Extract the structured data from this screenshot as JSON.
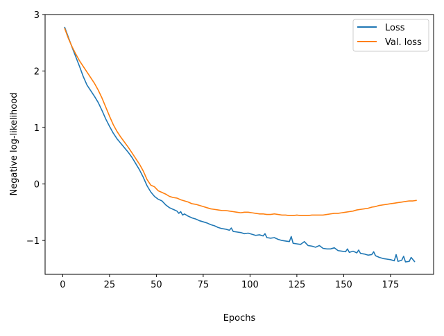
{
  "chart_data": {
    "type": "line",
    "xlabel": "Epochs",
    "ylabel": "Negative log-likelihood",
    "xlim": [
      -9.4,
      198
    ],
    "ylim": [
      -1.6,
      3.0
    ],
    "xticks": [
      0,
      25,
      50,
      75,
      100,
      125,
      150,
      175
    ],
    "xtick_labels": [
      "0",
      "25",
      "50",
      "75",
      "100",
      "125",
      "150",
      "175"
    ],
    "yticks": [
      -1,
      0,
      1,
      2,
      3
    ],
    "ytick_labels": [
      "−1",
      "0",
      "1",
      "2",
      "3"
    ],
    "grid": false,
    "legend_position": "top-right",
    "series": [
      {
        "name": "Loss",
        "color": "#1f77b4",
        "points": [
          [
            1,
            2.78
          ],
          [
            3,
            2.6
          ],
          [
            5,
            2.42
          ],
          [
            7,
            2.25
          ],
          [
            9,
            2.08
          ],
          [
            11,
            1.9
          ],
          [
            13,
            1.75
          ],
          [
            15,
            1.65
          ],
          [
            17,
            1.55
          ],
          [
            19,
            1.44
          ],
          [
            21,
            1.3
          ],
          [
            23,
            1.15
          ],
          [
            25,
            1.02
          ],
          [
            27,
            0.9
          ],
          [
            29,
            0.8
          ],
          [
            31,
            0.72
          ],
          [
            33,
            0.64
          ],
          [
            35,
            0.56
          ],
          [
            37,
            0.47
          ],
          [
            39,
            0.36
          ],
          [
            41,
            0.25
          ],
          [
            43,
            0.12
          ],
          [
            45,
            -0.03
          ],
          [
            47,
            -0.14
          ],
          [
            49,
            -0.22
          ],
          [
            51,
            -0.27
          ],
          [
            53,
            -0.3
          ],
          [
            55,
            -0.37
          ],
          [
            57,
            -0.42
          ],
          [
            59,
            -0.45
          ],
          [
            61,
            -0.48
          ],
          [
            62,
            -0.52
          ],
          [
            63,
            -0.49
          ],
          [
            64,
            -0.55
          ],
          [
            65,
            -0.53
          ],
          [
            67,
            -0.57
          ],
          [
            69,
            -0.6
          ],
          [
            71,
            -0.62
          ],
          [
            73,
            -0.65
          ],
          [
            75,
            -0.67
          ],
          [
            77,
            -0.69
          ],
          [
            79,
            -0.72
          ],
          [
            81,
            -0.74
          ],
          [
            83,
            -0.77
          ],
          [
            85,
            -0.79
          ],
          [
            87,
            -0.8
          ],
          [
            89,
            -0.82
          ],
          [
            90,
            -0.78
          ],
          [
            91,
            -0.84
          ],
          [
            93,
            -0.85
          ],
          [
            95,
            -0.86
          ],
          [
            97,
            -0.88
          ],
          [
            99,
            -0.87
          ],
          [
            101,
            -0.89
          ],
          [
            103,
            -0.91
          ],
          [
            105,
            -0.9
          ],
          [
            107,
            -0.92
          ],
          [
            108,
            -0.88
          ],
          [
            109,
            -0.95
          ],
          [
            111,
            -0.96
          ],
          [
            113,
            -0.95
          ],
          [
            115,
            -0.98
          ],
          [
            117,
            -1.0
          ],
          [
            119,
            -1.01
          ],
          [
            121,
            -1.02
          ],
          [
            122,
            -0.93
          ],
          [
            123,
            -1.05
          ],
          [
            125,
            -1.06
          ],
          [
            127,
            -1.07
          ],
          [
            129,
            -1.02
          ],
          [
            131,
            -1.09
          ],
          [
            133,
            -1.1
          ],
          [
            135,
            -1.12
          ],
          [
            137,
            -1.09
          ],
          [
            139,
            -1.14
          ],
          [
            141,
            -1.15
          ],
          [
            143,
            -1.15
          ],
          [
            145,
            -1.13
          ],
          [
            147,
            -1.18
          ],
          [
            149,
            -1.19
          ],
          [
            151,
            -1.2
          ],
          [
            152,
            -1.15
          ],
          [
            153,
            -1.21
          ],
          [
            155,
            -1.19
          ],
          [
            157,
            -1.22
          ],
          [
            158,
            -1.17
          ],
          [
            159,
            -1.23
          ],
          [
            161,
            -1.24
          ],
          [
            163,
            -1.26
          ],
          [
            165,
            -1.25
          ],
          [
            166,
            -1.2
          ],
          [
            167,
            -1.27
          ],
          [
            169,
            -1.3
          ],
          [
            171,
            -1.32
          ],
          [
            173,
            -1.33
          ],
          [
            175,
            -1.34
          ],
          [
            177,
            -1.36
          ],
          [
            178,
            -1.25
          ],
          [
            179,
            -1.37
          ],
          [
            181,
            -1.35
          ],
          [
            182,
            -1.28
          ],
          [
            183,
            -1.38
          ],
          [
            185,
            -1.37
          ],
          [
            186,
            -1.3
          ],
          [
            188,
            -1.38
          ]
        ]
      },
      {
        "name": "Val. loss",
        "color": "#ff7f0e",
        "points": [
          [
            1,
            2.76
          ],
          [
            3,
            2.58
          ],
          [
            5,
            2.43
          ],
          [
            7,
            2.3
          ],
          [
            9,
            2.18
          ],
          [
            11,
            2.08
          ],
          [
            13,
            1.98
          ],
          [
            15,
            1.88
          ],
          [
            17,
            1.78
          ],
          [
            19,
            1.66
          ],
          [
            21,
            1.52
          ],
          [
            23,
            1.36
          ],
          [
            25,
            1.2
          ],
          [
            27,
            1.05
          ],
          [
            29,
            0.93
          ],
          [
            31,
            0.83
          ],
          [
            33,
            0.74
          ],
          [
            35,
            0.65
          ],
          [
            37,
            0.55
          ],
          [
            39,
            0.45
          ],
          [
            41,
            0.35
          ],
          [
            43,
            0.23
          ],
          [
            45,
            0.08
          ],
          [
            47,
            -0.02
          ],
          [
            49,
            -0.05
          ],
          [
            51,
            -0.12
          ],
          [
            53,
            -0.15
          ],
          [
            55,
            -0.18
          ],
          [
            57,
            -0.22
          ],
          [
            59,
            -0.24
          ],
          [
            61,
            -0.25
          ],
          [
            63,
            -0.28
          ],
          [
            65,
            -0.3
          ],
          [
            67,
            -0.32
          ],
          [
            69,
            -0.35
          ],
          [
            71,
            -0.36
          ],
          [
            73,
            -0.38
          ],
          [
            75,
            -0.4
          ],
          [
            77,
            -0.42
          ],
          [
            79,
            -0.44
          ],
          [
            81,
            -0.45
          ],
          [
            83,
            -0.46
          ],
          [
            85,
            -0.47
          ],
          [
            87,
            -0.47
          ],
          [
            89,
            -0.48
          ],
          [
            91,
            -0.49
          ],
          [
            93,
            -0.5
          ],
          [
            95,
            -0.51
          ],
          [
            97,
            -0.5
          ],
          [
            99,
            -0.5
          ],
          [
            101,
            -0.51
          ],
          [
            103,
            -0.52
          ],
          [
            105,
            -0.53
          ],
          [
            107,
            -0.53
          ],
          [
            109,
            -0.54
          ],
          [
            111,
            -0.54
          ],
          [
            113,
            -0.53
          ],
          [
            115,
            -0.54
          ],
          [
            117,
            -0.55
          ],
          [
            119,
            -0.55
          ],
          [
            121,
            -0.56
          ],
          [
            123,
            -0.56
          ],
          [
            125,
            -0.55
          ],
          [
            127,
            -0.56
          ],
          [
            129,
            -0.56
          ],
          [
            131,
            -0.56
          ],
          [
            133,
            -0.55
          ],
          [
            135,
            -0.55
          ],
          [
            137,
            -0.55
          ],
          [
            139,
            -0.55
          ],
          [
            141,
            -0.54
          ],
          [
            143,
            -0.53
          ],
          [
            145,
            -0.52
          ],
          [
            147,
            -0.52
          ],
          [
            149,
            -0.51
          ],
          [
            151,
            -0.5
          ],
          [
            153,
            -0.49
          ],
          [
            155,
            -0.48
          ],
          [
            157,
            -0.46
          ],
          [
            159,
            -0.45
          ],
          [
            161,
            -0.44
          ],
          [
            163,
            -0.43
          ],
          [
            165,
            -0.41
          ],
          [
            167,
            -0.4
          ],
          [
            169,
            -0.38
          ],
          [
            171,
            -0.37
          ],
          [
            173,
            -0.36
          ],
          [
            175,
            -0.35
          ],
          [
            177,
            -0.34
          ],
          [
            179,
            -0.33
          ],
          [
            181,
            -0.32
          ],
          [
            183,
            -0.31
          ],
          [
            185,
            -0.3
          ],
          [
            187,
            -0.3
          ],
          [
            189,
            -0.29
          ]
        ]
      }
    ]
  }
}
